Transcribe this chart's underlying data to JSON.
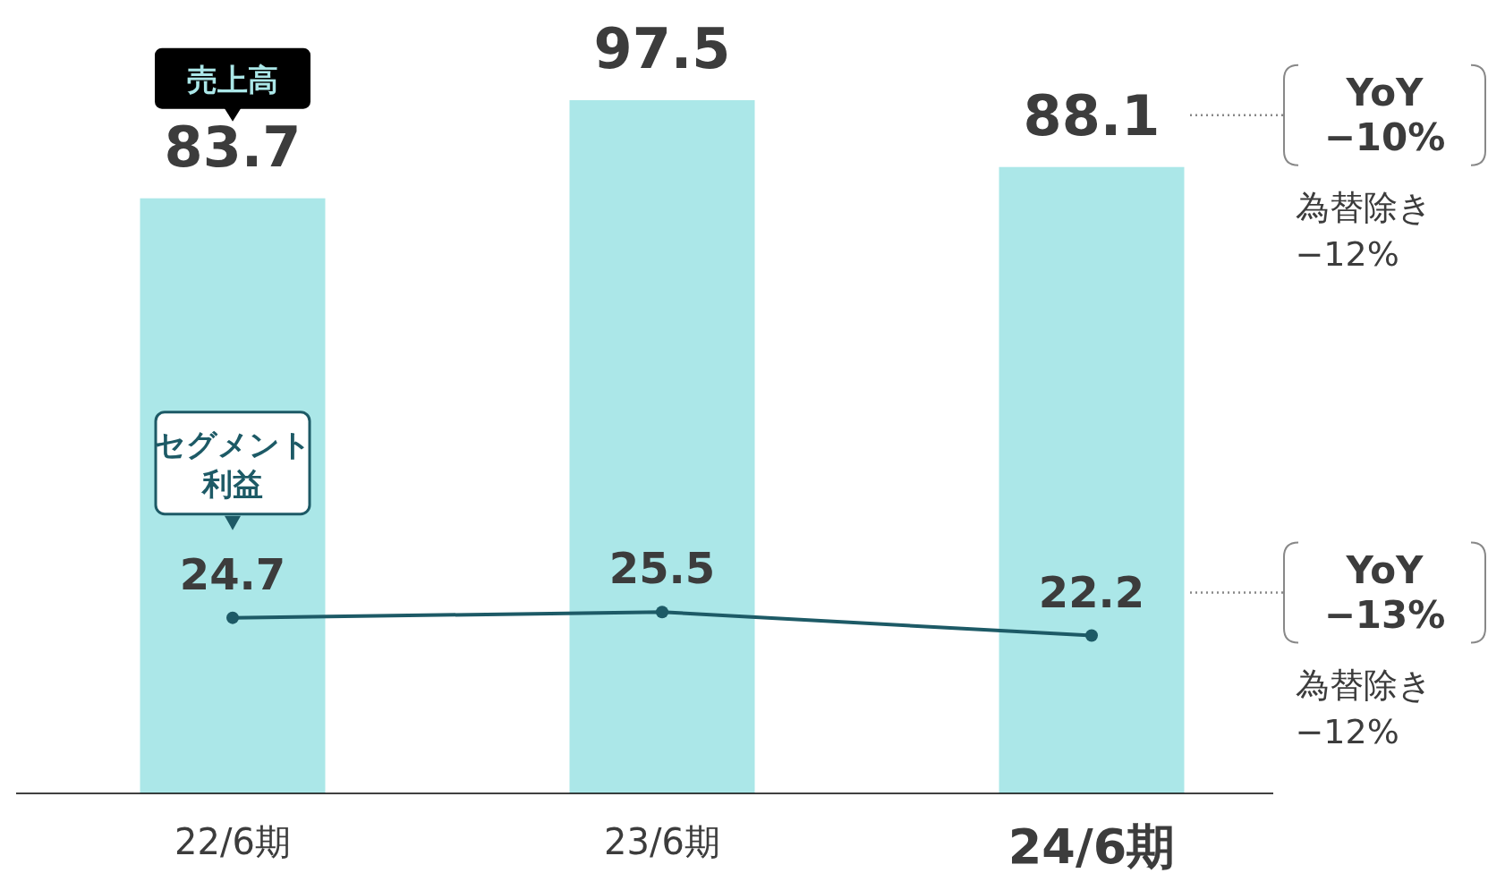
{
  "chart_data": {
    "type": "bar",
    "categories": [
      "22/6期",
      "23/6期",
      "24/6期"
    ],
    "series": [
      {
        "name": "売上高",
        "color": "#abe7e8",
        "values": [
          83.7,
          97.5,
          88.1
        ]
      },
      {
        "name": "セグメント利益",
        "type": "line",
        "color": "#1d5a66",
        "values": [
          24.7,
          25.5,
          22.2
        ]
      }
    ],
    "marker": "circle",
    "data_labels": true,
    "annotations": [
      "YoY\n−10%",
      "為替除き\n−12%",
      "YoY\n−13%",
      "為替除き\n−12%"
    ]
  }
}
